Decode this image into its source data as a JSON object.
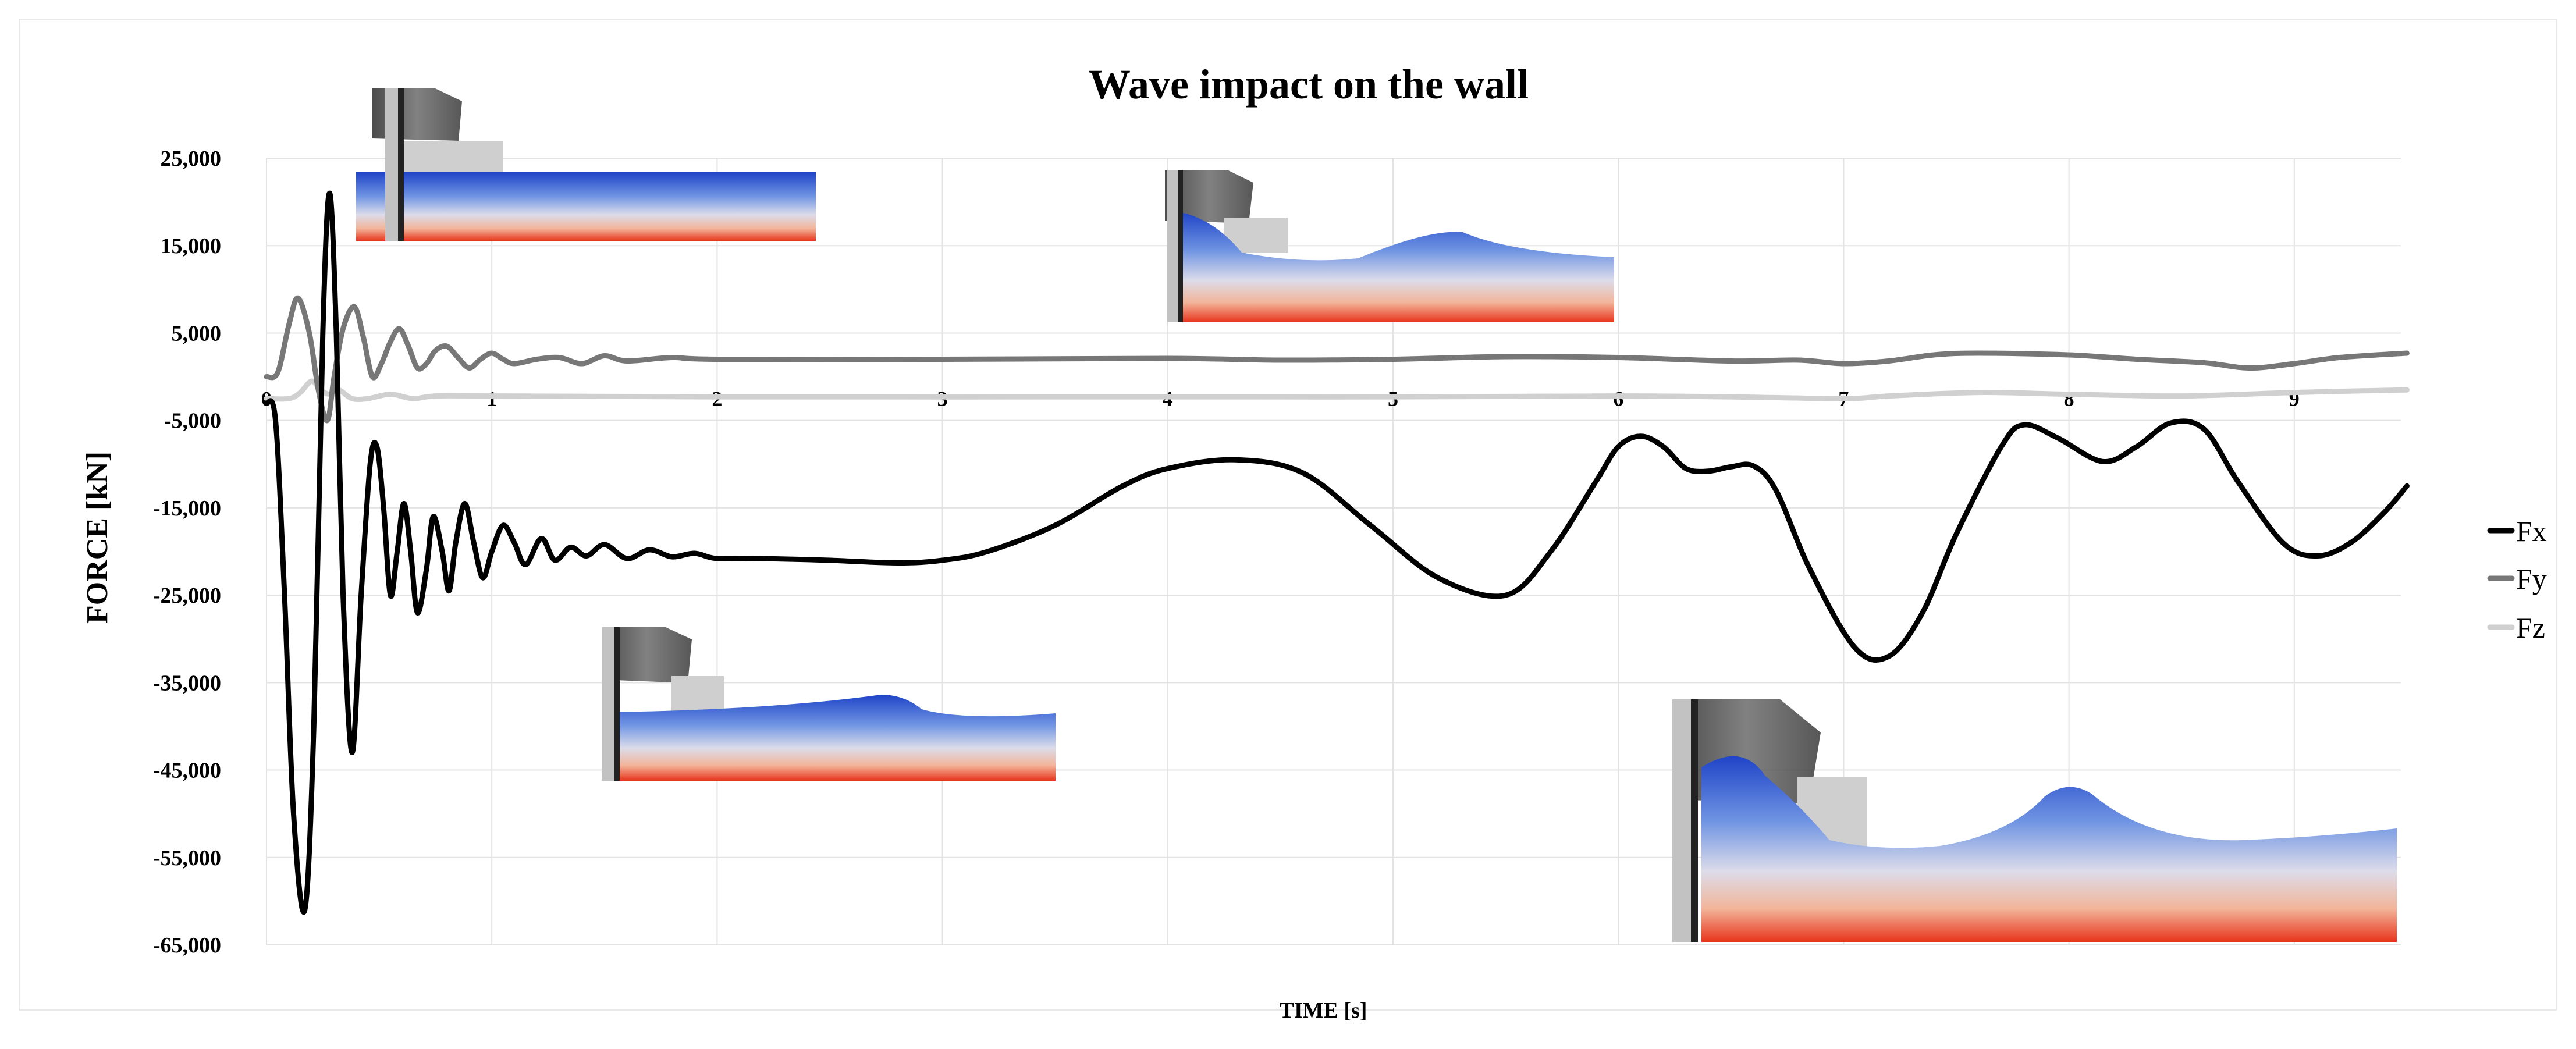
{
  "chart_data": {
    "type": "line",
    "title": "Wave impact on the wall",
    "xlabel": "TIME [s]",
    "ylabel": "FORCE [kN]",
    "xlim": [
      0,
      9.5
    ],
    "ylim": [
      -65000,
      25000
    ],
    "x_ticks": [
      0,
      1,
      2,
      3,
      4,
      5,
      6,
      7,
      8,
      9
    ],
    "y_ticks": [
      25000,
      15000,
      5000,
      -5000,
      -15000,
      -25000,
      -35000,
      -45000,
      -55000,
      -65000
    ],
    "y_tick_labels": [
      "25,000",
      "15,000",
      "5,000",
      "-5,000",
      "-15,000",
      "-25,000",
      "-35,000",
      "-45,000",
      "-55,000",
      "-65,000"
    ],
    "x_tick_labels": [
      "0",
      "1",
      "2",
      "3",
      "4",
      "5",
      "6",
      "7",
      "8",
      "9"
    ],
    "grid": true,
    "legend_position": "right",
    "series": [
      {
        "name": "Fx",
        "color": "#000000",
        "points": [
          [
            0.0,
            -3000
          ],
          [
            0.04,
            -5000
          ],
          [
            0.08,
            -25000
          ],
          [
            0.12,
            -50000
          ],
          [
            0.17,
            -61000
          ],
          [
            0.21,
            -40000
          ],
          [
            0.25,
            5000
          ],
          [
            0.28,
            21000
          ],
          [
            0.31,
            5000
          ],
          [
            0.34,
            -25000
          ],
          [
            0.38,
            -43000
          ],
          [
            0.42,
            -25000
          ],
          [
            0.46,
            -10000
          ],
          [
            0.49,
            -8000
          ],
          [
            0.52,
            -15000
          ],
          [
            0.55,
            -25000
          ],
          [
            0.58,
            -20000
          ],
          [
            0.61,
            -14500
          ],
          [
            0.64,
            -20000
          ],
          [
            0.67,
            -27000
          ],
          [
            0.71,
            -22000
          ],
          [
            0.74,
            -16000
          ],
          [
            0.78,
            -20000
          ],
          [
            0.81,
            -24500
          ],
          [
            0.84,
            -19000
          ],
          [
            0.88,
            -14500
          ],
          [
            0.92,
            -19000
          ],
          [
            0.96,
            -23000
          ],
          [
            1.0,
            -20000
          ],
          [
            1.05,
            -17000
          ],
          [
            1.1,
            -19000
          ],
          [
            1.15,
            -21500
          ],
          [
            1.22,
            -18500
          ],
          [
            1.28,
            -21000
          ],
          [
            1.35,
            -19500
          ],
          [
            1.42,
            -20500
          ],
          [
            1.5,
            -19200
          ],
          [
            1.6,
            -20800
          ],
          [
            1.7,
            -19800
          ],
          [
            1.8,
            -20600
          ],
          [
            1.9,
            -20200
          ],
          [
            2.0,
            -20800
          ],
          [
            2.2,
            -20800
          ],
          [
            2.5,
            -21000
          ],
          [
            2.8,
            -21300
          ],
          [
            3.0,
            -21000
          ],
          [
            3.2,
            -20000
          ],
          [
            3.5,
            -17000
          ],
          [
            3.8,
            -12500
          ],
          [
            4.0,
            -10500
          ],
          [
            4.3,
            -9500
          ],
          [
            4.6,
            -11000
          ],
          [
            4.9,
            -17000
          ],
          [
            5.2,
            -23000
          ],
          [
            5.5,
            -25000
          ],
          [
            5.7,
            -20000
          ],
          [
            5.9,
            -12000
          ],
          [
            6.0,
            -8000
          ],
          [
            6.1,
            -6800
          ],
          [
            6.2,
            -8000
          ],
          [
            6.3,
            -10500
          ],
          [
            6.4,
            -10800
          ],
          [
            6.5,
            -10300
          ],
          [
            6.6,
            -10200
          ],
          [
            6.7,
            -13000
          ],
          [
            6.85,
            -22000
          ],
          [
            7.05,
            -31000
          ],
          [
            7.2,
            -32000
          ],
          [
            7.35,
            -27000
          ],
          [
            7.5,
            -18000
          ],
          [
            7.7,
            -8000
          ],
          [
            7.8,
            -5500
          ],
          [
            7.95,
            -7000
          ],
          [
            8.15,
            -9700
          ],
          [
            8.3,
            -8000
          ],
          [
            8.45,
            -5300
          ],
          [
            8.6,
            -6000
          ],
          [
            8.75,
            -12000
          ],
          [
            8.95,
            -19000
          ],
          [
            9.1,
            -20500
          ],
          [
            9.25,
            -19000
          ],
          [
            9.4,
            -15500
          ],
          [
            9.5,
            -12500
          ]
        ]
      },
      {
        "name": "Fy",
        "color": "#777777",
        "points": [
          [
            0.0,
            0
          ],
          [
            0.05,
            500
          ],
          [
            0.1,
            6000
          ],
          [
            0.14,
            9000
          ],
          [
            0.19,
            5000
          ],
          [
            0.23,
            -1500
          ],
          [
            0.27,
            -5000
          ],
          [
            0.3,
            0
          ],
          [
            0.34,
            5500
          ],
          [
            0.39,
            8000
          ],
          [
            0.43,
            4500
          ],
          [
            0.47,
            0
          ],
          [
            0.51,
            1500
          ],
          [
            0.55,
            4000
          ],
          [
            0.59,
            5500
          ],
          [
            0.63,
            3500
          ],
          [
            0.67,
            1000
          ],
          [
            0.71,
            1500
          ],
          [
            0.75,
            3000
          ],
          [
            0.8,
            3500
          ],
          [
            0.85,
            2200
          ],
          [
            0.9,
            1000
          ],
          [
            0.95,
            2000
          ],
          [
            1.0,
            2700
          ],
          [
            1.05,
            2000
          ],
          [
            1.1,
            1500
          ],
          [
            1.2,
            2000
          ],
          [
            1.3,
            2200
          ],
          [
            1.4,
            1500
          ],
          [
            1.5,
            2400
          ],
          [
            1.6,
            1800
          ],
          [
            1.8,
            2200
          ],
          [
            2.0,
            2000
          ],
          [
            3.0,
            2000
          ],
          [
            4.0,
            2100
          ],
          [
            4.5,
            1900
          ],
          [
            5.0,
            2000
          ],
          [
            5.5,
            2300
          ],
          [
            6.0,
            2200
          ],
          [
            6.5,
            1800
          ],
          [
            6.8,
            1900
          ],
          [
            7.0,
            1500
          ],
          [
            7.2,
            1800
          ],
          [
            7.4,
            2500
          ],
          [
            7.6,
            2700
          ],
          [
            8.0,
            2500
          ],
          [
            8.3,
            2000
          ],
          [
            8.6,
            1600
          ],
          [
            8.8,
            1000
          ],
          [
            9.0,
            1500
          ],
          [
            9.2,
            2200
          ],
          [
            9.5,
            2700
          ]
        ]
      },
      {
        "name": "Fz",
        "color": "#d0d0d0",
        "points": [
          [
            0.0,
            -2500
          ],
          [
            0.1,
            -2500
          ],
          [
            0.15,
            -1800
          ],
          [
            0.2,
            -500
          ],
          [
            0.24,
            -1500
          ],
          [
            0.28,
            -2000
          ],
          [
            0.32,
            -1500
          ],
          [
            0.38,
            -2500
          ],
          [
            0.45,
            -2500
          ],
          [
            0.55,
            -2000
          ],
          [
            0.65,
            -2500
          ],
          [
            0.75,
            -2200
          ],
          [
            1.0,
            -2200
          ],
          [
            2.0,
            -2300
          ],
          [
            4.0,
            -2300
          ],
          [
            5.0,
            -2300
          ],
          [
            6.0,
            -2200
          ],
          [
            6.5,
            -2300
          ],
          [
            7.0,
            -2500
          ],
          [
            7.2,
            -2200
          ],
          [
            7.6,
            -1800
          ],
          [
            8.0,
            -2000
          ],
          [
            8.5,
            -2200
          ],
          [
            9.0,
            -1800
          ],
          [
            9.5,
            -1500
          ]
        ]
      }
    ]
  }
}
